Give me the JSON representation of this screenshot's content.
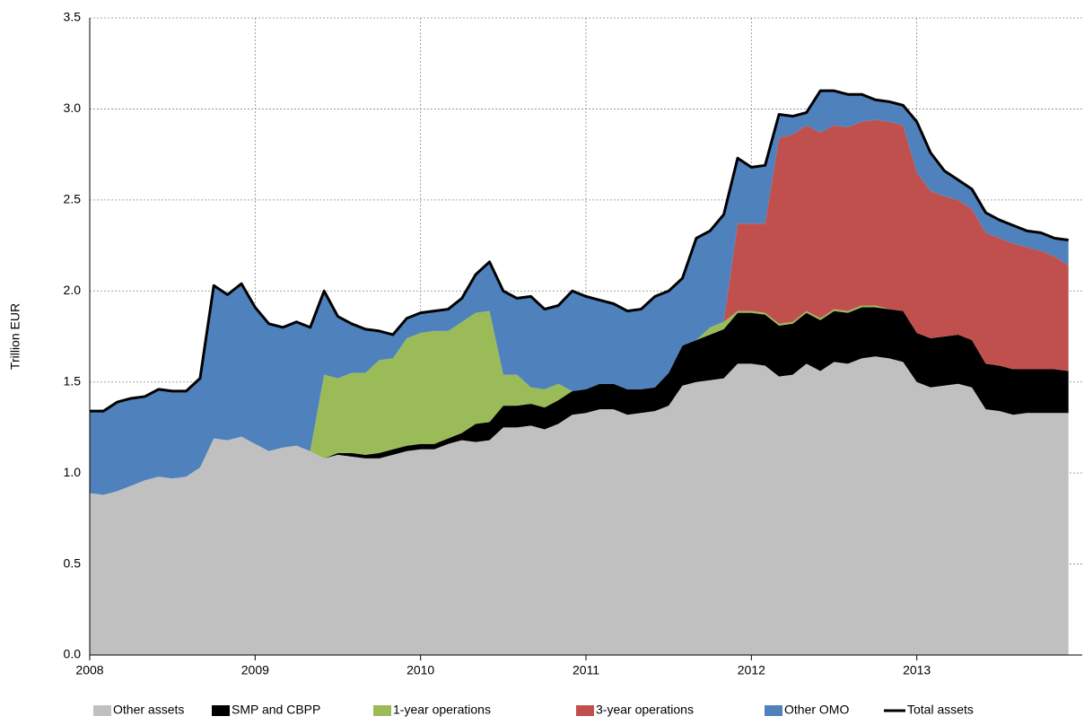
{
  "chart_data": {
    "type": "stacked-area",
    "y_label": "Trillion EUR",
    "x": [
      2008,
      2008.083,
      2008.167,
      2008.25,
      2008.333,
      2008.417,
      2008.5,
      2008.583,
      2008.667,
      2008.75,
      2008.833,
      2008.917,
      2009,
      2009.083,
      2009.167,
      2009.25,
      2009.333,
      2009.417,
      2009.5,
      2009.583,
      2009.667,
      2009.75,
      2009.833,
      2009.917,
      2010,
      2010.083,
      2010.167,
      2010.25,
      2010.333,
      2010.417,
      2010.5,
      2010.583,
      2010.667,
      2010.75,
      2010.833,
      2010.917,
      2011,
      2011.083,
      2011.167,
      2011.25,
      2011.333,
      2011.417,
      2011.5,
      2011.583,
      2011.667,
      2011.75,
      2011.833,
      2011.917,
      2012,
      2012.083,
      2012.167,
      2012.25,
      2012.333,
      2012.417,
      2012.5,
      2012.583,
      2012.667,
      2012.75,
      2012.833,
      2012.917,
      2013,
      2013.083,
      2013.167,
      2013.25,
      2013.333,
      2013.417,
      2013.5,
      2013.583,
      2013.667,
      2013.75,
      2013.833,
      2013.917
    ],
    "xlim": [
      2008,
      2014
    ],
    "xticks": [
      2008,
      2009,
      2010,
      2011,
      2012,
      2013
    ],
    "ylim": [
      0,
      3.5
    ],
    "yticks": [
      {
        "value": 0,
        "label": "0.0"
      },
      0.5,
      {
        "value": 1,
        "label": "1.0"
      },
      1.5,
      {
        "value": 2,
        "label": "2.0"
      },
      2.5,
      {
        "value": 3,
        "label": "3.0"
      },
      3.5
    ],
    "grid": true,
    "legend": "bottom",
    "series": [
      {
        "name": "Other assets",
        "color": "#c0c0c0",
        "kind": "area",
        "values": [
          0.89,
          0.88,
          0.9,
          0.93,
          0.96,
          0.98,
          0.97,
          0.98,
          1.03,
          1.19,
          1.18,
          1.2,
          1.16,
          1.12,
          1.14,
          1.15,
          1.12,
          1.08,
          1.1,
          1.09,
          1.08,
          1.08,
          1.1,
          1.12,
          1.13,
          1.13,
          1.16,
          1.18,
          1.17,
          1.18,
          1.25,
          1.25,
          1.26,
          1.24,
          1.27,
          1.32,
          1.33,
          1.35,
          1.35,
          1.32,
          1.33,
          1.34,
          1.37,
          1.48,
          1.5,
          1.51,
          1.52,
          1.6,
          1.6,
          1.59,
          1.53,
          1.54,
          1.6,
          1.56,
          1.61,
          1.6,
          1.63,
          1.64,
          1.63,
          1.61,
          1.5,
          1.47,
          1.48,
          1.49,
          1.47,
          1.35,
          1.34,
          1.32,
          1.33,
          1.33,
          1.33,
          1.33
        ]
      },
      {
        "name": "SMP and CBPP",
        "color": "#000000",
        "kind": "area",
        "values": [
          0,
          0,
          0,
          0,
          0,
          0,
          0,
          0,
          0,
          0,
          0,
          0,
          0,
          0,
          0,
          0,
          0,
          0,
          0.01,
          0.02,
          0.02,
          0.03,
          0.03,
          0.03,
          0.03,
          0.03,
          0.03,
          0.04,
          0.1,
          0.1,
          0.12,
          0.12,
          0.12,
          0.12,
          0.13,
          0.13,
          0.13,
          0.14,
          0.14,
          0.14,
          0.13,
          0.13,
          0.18,
          0.22,
          0.23,
          0.25,
          0.27,
          0.28,
          0.28,
          0.28,
          0.28,
          0.28,
          0.28,
          0.28,
          0.28,
          0.28,
          0.28,
          0.27,
          0.27,
          0.28,
          0.27,
          0.27,
          0.27,
          0.27,
          0.26,
          0.25,
          0.25,
          0.25,
          0.24,
          0.24,
          0.24,
          0.23
        ]
      },
      {
        "name": "1-year operations",
        "color": "#9bbb59",
        "kind": "area",
        "values": [
          0,
          0,
          0,
          0,
          0,
          0,
          0,
          0,
          0,
          0,
          0,
          0,
          0,
          0,
          0,
          0,
          0,
          0.46,
          0.41,
          0.44,
          0.45,
          0.51,
          0.5,
          0.59,
          0.61,
          0.62,
          0.59,
          0.61,
          0.61,
          0.61,
          0.17,
          0.17,
          0.09,
          0.1,
          0.09,
          0,
          0,
          0,
          0,
          0,
          0,
          0,
          0,
          0,
          0,
          0.04,
          0.04,
          0.01,
          0.01,
          0.01,
          0.01,
          0.01,
          0.01,
          0.01,
          0.01,
          0.01,
          0.01,
          0.01,
          0,
          0,
          0,
          0,
          0,
          0,
          0,
          0,
          0,
          0,
          0,
          0,
          0,
          0
        ]
      },
      {
        "name": "3-year operations",
        "color": "#c0504d",
        "kind": "area",
        "values": [
          0,
          0,
          0,
          0,
          0,
          0,
          0,
          0,
          0,
          0,
          0,
          0,
          0,
          0,
          0,
          0,
          0,
          0,
          0,
          0,
          0,
          0,
          0,
          0,
          0,
          0,
          0,
          0,
          0,
          0,
          0,
          0,
          0,
          0,
          0,
          0,
          0,
          0,
          0,
          0,
          0,
          0,
          0,
          0,
          0,
          0,
          0,
          0.48,
          0.48,
          0.49,
          1.02,
          1.03,
          1.02,
          1.02,
          1.01,
          1.01,
          1.01,
          1.02,
          1.03,
          1.02,
          0.88,
          0.81,
          0.77,
          0.74,
          0.72,
          0.72,
          0.7,
          0.69,
          0.67,
          0.65,
          0.62,
          0.58
        ]
      },
      {
        "name": "Other OMO",
        "color": "#4f81bd",
        "kind": "area",
        "values": [
          0.45,
          0.46,
          0.49,
          0.48,
          0.46,
          0.48,
          0.48,
          0.47,
          0.49,
          0.84,
          0.8,
          0.84,
          0.75,
          0.7,
          0.66,
          0.68,
          0.68,
          0.46,
          0.34,
          0.27,
          0.24,
          0.16,
          0.13,
          0.11,
          0.11,
          0.11,
          0.12,
          0.13,
          0.21,
          0.27,
          0.46,
          0.42,
          0.5,
          0.44,
          0.43,
          0.55,
          0.51,
          0.46,
          0.44,
          0.43,
          0.44,
          0.5,
          0.45,
          0.37,
          0.56,
          0.53,
          0.59,
          0.36,
          0.31,
          0.32,
          0.13,
          0.1,
          0.07,
          0.23,
          0.19,
          0.18,
          0.15,
          0.11,
          0.11,
          0.11,
          0.28,
          0.21,
          0.14,
          0.11,
          0.11,
          0.11,
          0.1,
          0.1,
          0.09,
          0.1,
          0.1,
          0.14
        ]
      },
      {
        "name": "Total assets",
        "color": "#000000",
        "kind": "line",
        "values": [
          1.34,
          1.34,
          1.39,
          1.41,
          1.42,
          1.46,
          1.45,
          1.45,
          1.52,
          2.03,
          1.98,
          2.04,
          1.91,
          1.82,
          1.8,
          1.83,
          1.8,
          2.0,
          1.86,
          1.82,
          1.79,
          1.78,
          1.76,
          1.85,
          1.88,
          1.89,
          1.9,
          1.96,
          2.09,
          2.16,
          2.0,
          1.96,
          1.97,
          1.9,
          1.92,
          2.0,
          1.97,
          1.95,
          1.93,
          1.89,
          1.9,
          1.97,
          2.0,
          2.07,
          2.29,
          2.33,
          2.42,
          2.73,
          2.68,
          2.69,
          2.97,
          2.96,
          2.98,
          3.1,
          3.1,
          3.08,
          3.08,
          3.05,
          3.04,
          3.02,
          2.93,
          2.76,
          2.66,
          2.61,
          2.56,
          2.43,
          2.39,
          2.36,
          2.33,
          2.32,
          2.29,
          2.28
        ]
      }
    ]
  }
}
